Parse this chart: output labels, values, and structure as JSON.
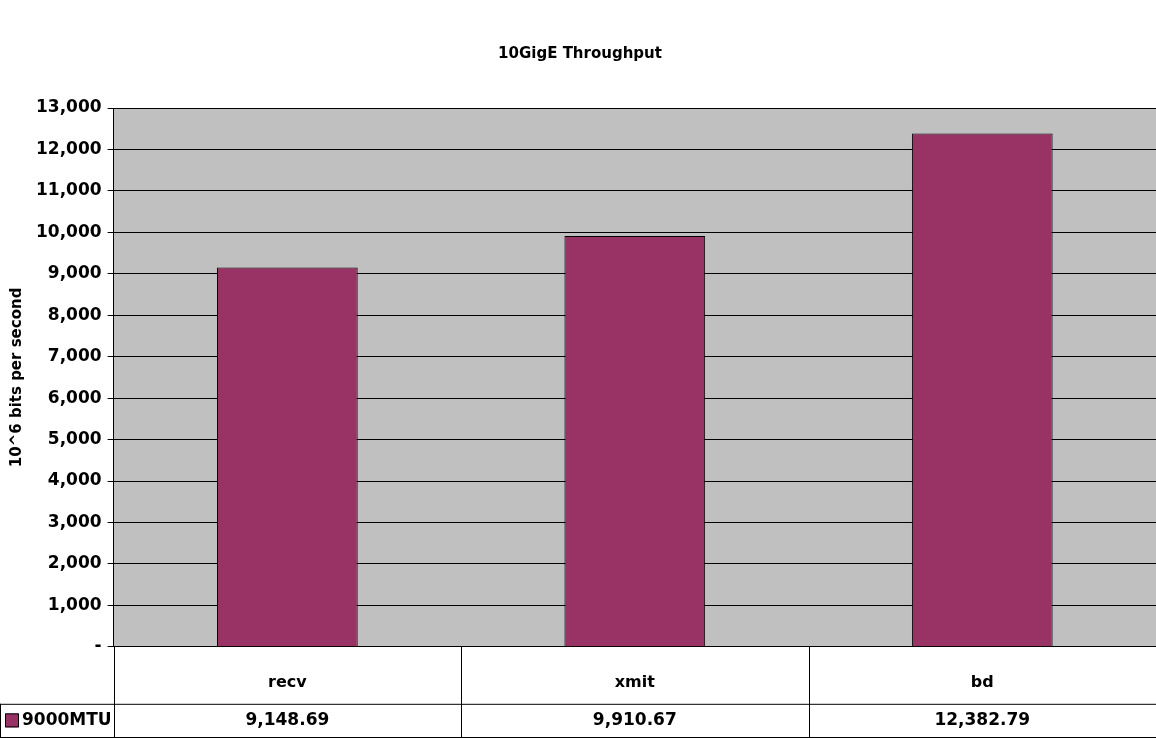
{
  "chart_data": {
    "type": "bar",
    "title": "10GigE Throughput",
    "ylabel": "10^6 bits per second",
    "categories": [
      "recv",
      "xmit",
      "bd"
    ],
    "series": [
      {
        "name": "9000MTU",
        "color": "#993366",
        "values": [
          9148.69,
          9910.67,
          12382.79
        ],
        "value_labels": [
          "9,148.69",
          "9,910.67",
          "12,382.79"
        ]
      }
    ],
    "ylim": [
      0,
      13000
    ],
    "yticks": [
      {
        "value": 0,
        "label": "-"
      },
      {
        "value": 1000,
        "label": "1,000"
      },
      {
        "value": 2000,
        "label": "2,000"
      },
      {
        "value": 3000,
        "label": "3,000"
      },
      {
        "value": 4000,
        "label": "4,000"
      },
      {
        "value": 5000,
        "label": "5,000"
      },
      {
        "value": 6000,
        "label": "6,000"
      },
      {
        "value": 7000,
        "label": "7,000"
      },
      {
        "value": 8000,
        "label": "8,000"
      },
      {
        "value": 9000,
        "label": "9,000"
      },
      {
        "value": 10000,
        "label": "10,000"
      },
      {
        "value": 11000,
        "label": "11,000"
      },
      {
        "value": 12000,
        "label": "12,000"
      },
      {
        "value": 13000,
        "label": "13,000"
      }
    ],
    "grid": "y",
    "legend": "bottom left"
  }
}
